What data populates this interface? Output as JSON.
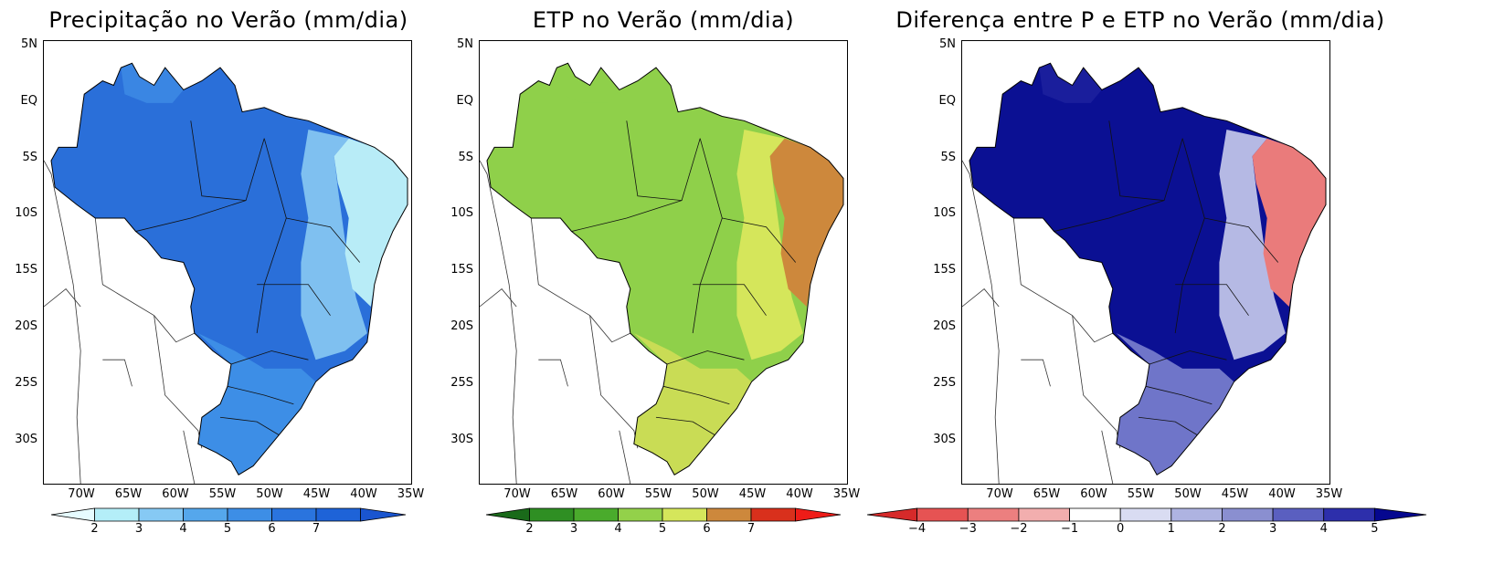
{
  "panels": [
    {
      "title": "Precipitação no Verão (mm/dia)",
      "colorbar": {
        "labels": [
          "2",
          "3",
          "4",
          "5",
          "6",
          "7"
        ],
        "colors": [
          "#e6fbff",
          "#b4eef8",
          "#86c9f4",
          "#55a7ec",
          "#3d8ee6",
          "#2a74de",
          "#1e63d8",
          "#1a55cf"
        ]
      },
      "fill": {
        "main": "#2a6fd9",
        "north": "#3a86e3",
        "coast": "#b8ecf7",
        "coast2": "#7fc0f0",
        "south": "#3d8ee6"
      }
    },
    {
      "title": "ETP no Verão (mm/dia)",
      "colorbar": {
        "labels": [
          "2",
          "3",
          "4",
          "5",
          "6",
          "7"
        ],
        "colors": [
          "#1a6a1a",
          "#2f8f23",
          "#4aab2c",
          "#93d14a",
          "#d5e65b",
          "#cd883c",
          "#d9301c",
          "#ee1c18"
        ]
      },
      "fill": {
        "main": "#8fd04a",
        "north": "#8fd04a",
        "coast": "#cd883c",
        "coast2": "#d5e65b",
        "south": "#c9dc55"
      }
    },
    {
      "title": "Diferença entre P e ETP no Verão (mm/dia)",
      "colorbar": {
        "labels": [
          "−4",
          "−3",
          "−2",
          "−1",
          "0",
          "1",
          "2",
          "3",
          "4",
          "5"
        ],
        "colors": [
          "#d62a2a",
          "#e65353",
          "#ec7f7f",
          "#f2aeae",
          "#ffffff",
          "#d9dcf2",
          "#aeb3e1",
          "#8a8fd0",
          "#5a5fc0",
          "#2d2fab",
          "#05078f"
        ]
      },
      "fill": {
        "main": "#0b1093",
        "north": "#1a1e9c",
        "coast": "#ea7b7b",
        "coast2": "#b5b9e4",
        "south": "#6f75c9"
      }
    }
  ],
  "axes": {
    "lat_labels": [
      "5N",
      "EQ",
      "5S",
      "10S",
      "15S",
      "20S",
      "25S",
      "30S"
    ],
    "lon_labels": [
      "70W",
      "65W",
      "60W",
      "55W",
      "50W",
      "45W",
      "40W",
      "35W"
    ]
  }
}
